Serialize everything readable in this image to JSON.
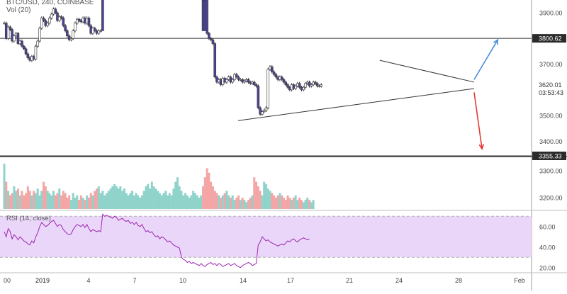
{
  "header": {
    "symbol_line": "BTC/USD, 240, COINBASE",
    "volume_label": "Vol (20)"
  },
  "rsi_panel": {
    "label": "RSI (14, close)"
  },
  "colors": {
    "up": "#26a69a",
    "down": "#ef5350",
    "candle_body": "#4b4596",
    "volume_up": "#8fd3cb",
    "volume_down": "#f4a6a6",
    "rsi_line": "#9c27b0",
    "rsi_band": "#ead6f8",
    "projection_up": "#4a90e2",
    "projection_down": "#e53935"
  },
  "chart_data": [
    {
      "type": "candlestick",
      "title": "BTC/USD, 240, COINBASE",
      "x_axis": {
        "tick_labels": [
          "00",
          "2019",
          "4",
          "7",
          "10",
          "14",
          "17",
          "21",
          "24",
          "28",
          "Feb"
        ]
      },
      "y_axis": {
        "ylim": [
          3340,
          3950
        ],
        "tick_labels": [
          "3900.00",
          "3800.00",
          "3700.00",
          "3600.00",
          "3500.00",
          "3400.00"
        ]
      },
      "price_labels": [
        {
          "text": "3800.62",
          "value": 3800.62
        },
        {
          "text": "3620.01",
          "value": 3620.01
        },
        {
          "text": "03:53:43",
          "value": 3601
        },
        {
          "text": "3355.33",
          "value": 3355.33
        }
      ],
      "horizontal_levels": [
        3800.62,
        3355.33
      ],
      "closes": [
        3860,
        3800,
        3845,
        3835,
        3790,
        3810,
        3820,
        3780,
        3790,
        3770,
        3760,
        3740,
        3725,
        3715,
        3730,
        3720,
        3770,
        3790,
        3840,
        3880,
        3870,
        3850,
        3860,
        3880,
        3895,
        3915,
        3900,
        3870,
        3885,
        3880,
        3850,
        3830,
        3810,
        3795,
        3800,
        3830,
        3860,
        3875,
        3870,
        3865,
        3880,
        3860,
        3880,
        3850,
        3820,
        3840,
        3830,
        3820,
        3830,
        3830,
        3995,
        3995,
        3995,
        3995,
        3995,
        3995,
        3995,
        3995,
        3995,
        3995,
        3995,
        3995,
        3995,
        3995,
        3995,
        3995,
        3995,
        3995,
        3995,
        3995,
        3995,
        3995,
        3995,
        3995,
        3995,
        3995,
        3995,
        3995,
        3995,
        3995,
        3995,
        3995,
        3995,
        3995,
        3995,
        3995,
        3995,
        3995,
        3995,
        3995,
        3995,
        3995,
        3995,
        3995,
        3995,
        3995,
        3995,
        3995,
        3995,
        3995,
        3995,
        3990,
        3960,
        3820,
        3800,
        3795,
        3780,
        3650,
        3630,
        3640,
        3620,
        3645,
        3630,
        3640,
        3650,
        3630,
        3640,
        3660,
        3650,
        3640,
        3640,
        3630,
        3635,
        3640,
        3630,
        3625,
        3630,
        3620,
        3615,
        3530,
        3505,
        3515,
        3520,
        3530,
        3680,
        3690,
        3670,
        3660,
        3650,
        3640,
        3650,
        3640,
        3630,
        3620,
        3610,
        3600,
        3620,
        3605,
        3615,
        3625,
        3610,
        3600,
        3610,
        3625,
        3630,
        3615,
        3620,
        3630,
        3625,
        3615,
        3615,
        3620
      ],
      "volume": [
        1.0,
        0.6,
        0.4,
        0.3,
        0.35,
        0.5,
        0.4,
        0.45,
        0.3,
        0.4,
        0.3,
        0.35,
        0.5,
        0.4,
        0.3,
        0.4,
        0.35,
        0.45,
        0.3,
        0.4,
        0.6,
        0.5,
        0.4,
        0.35,
        0.3,
        0.4,
        0.3,
        0.35,
        0.45,
        0.3,
        0.4,
        0.35,
        0.25,
        0.3,
        0.2,
        0.35,
        0.25,
        0.3,
        0.2,
        0.3,
        0.25,
        0.2,
        0.3,
        0.25,
        0.35,
        0.3,
        0.4,
        0.45,
        0.5,
        0.35,
        0.4,
        0.3,
        0.35,
        0.4,
        0.45,
        0.5,
        0.55,
        0.5,
        0.45,
        0.5,
        0.4,
        0.45,
        0.35,
        0.3,
        0.35,
        0.4,
        0.3,
        0.35,
        0.3,
        0.25,
        0.3,
        0.4,
        0.5,
        0.55,
        0.45,
        0.6,
        0.5,
        0.45,
        0.4,
        0.35,
        0.3,
        0.35,
        0.4,
        0.3,
        0.35,
        0.3,
        0.45,
        0.6,
        0.7,
        0.5,
        0.4,
        0.3,
        0.35,
        0.3,
        0.25,
        0.3,
        0.4,
        0.35,
        0.3,
        0.25,
        0.3,
        0.5,
        0.7,
        0.9,
        0.8,
        0.6,
        0.5,
        0.4,
        0.35,
        0.3,
        0.25,
        0.3,
        0.35,
        0.4,
        0.3,
        0.25,
        0.3,
        0.2,
        0.25,
        0.3,
        0.2,
        0.25,
        0.2,
        0.15,
        0.2,
        0.25,
        0.3,
        0.7,
        0.6,
        0.5,
        0.4,
        0.3,
        0.6,
        0.55,
        0.45,
        0.4,
        0.35,
        0.3,
        0.25,
        0.3,
        0.35,
        0.3,
        0.25,
        0.2,
        0.3,
        0.25,
        0.2,
        0.25,
        0.3,
        0.2,
        0.25,
        0.2,
        0.15,
        0.2,
        0.25,
        0.2,
        0.15,
        0.2
      ],
      "rsi": [
        55,
        50,
        58,
        55,
        48,
        52,
        50,
        47,
        50,
        48,
        46,
        45,
        43,
        42,
        46,
        44,
        50,
        54,
        60,
        64,
        62,
        60,
        61,
        63,
        65,
        66,
        63,
        60,
        62,
        61,
        57,
        55,
        53,
        52,
        53,
        57,
        60,
        62,
        61,
        60,
        62,
        59,
        62,
        58,
        55,
        57,
        56,
        55,
        56,
        55,
        72,
        70,
        71,
        70,
        69,
        68,
        70,
        69,
        66,
        67,
        68,
        66,
        65,
        66,
        63,
        64,
        62,
        64,
        61,
        60,
        62,
        58,
        55,
        56,
        54,
        55,
        52,
        50,
        51,
        48,
        50,
        49,
        47,
        45,
        46,
        44,
        42,
        41,
        40,
        39,
        30,
        28,
        27,
        25,
        26,
        24,
        25,
        24,
        23,
        22,
        24,
        22,
        21,
        23,
        24,
        25,
        23,
        24,
        22,
        24,
        23,
        21,
        22,
        23,
        24,
        22,
        23,
        24,
        22,
        21,
        20,
        22,
        23,
        24,
        25,
        24,
        22,
        23,
        24,
        42,
        45,
        50,
        48,
        46,
        47,
        45,
        44,
        43,
        42,
        41,
        42,
        43,
        42,
        44,
        46,
        45,
        47,
        48,
        46,
        45,
        47,
        48,
        49,
        48,
        47,
        48
      ],
      "annotations": {
        "triangle_upper": [
          [
            12,
            3715
          ],
          [
            24,
            3630
          ]
        ],
        "triangle_lower": [
          [
            -6,
            3480
          ],
          [
            24,
            3605
          ]
        ],
        "arrow_up": [
          [
            24,
            3640
          ],
          [
            27,
            3795
          ]
        ],
        "arrow_down": [
          [
            24,
            3590
          ],
          [
            25,
            3370
          ]
        ]
      }
    },
    {
      "type": "line",
      "title": "RSI (14, close)",
      "y_axis": {
        "ylim": [
          15,
          75
        ],
        "tick_labels": [
          "60.00",
          "40.00",
          "20.00"
        ]
      },
      "bands": [
        30,
        70
      ]
    },
    {
      "type": "bar",
      "title": "Vol (20)",
      "y_axis": {
        "tick_labels": [
          "3300.00",
          "3200.00"
        ]
      }
    }
  ]
}
